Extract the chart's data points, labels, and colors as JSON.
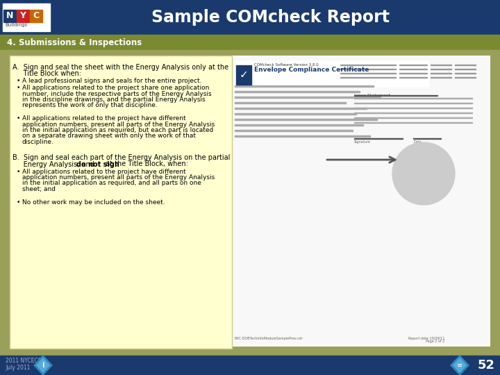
{
  "title": "Sample COMcheck Report",
  "section": "4. Submissions & Inspections",
  "header_bg": "#1a3a6e",
  "section_bg": "#7a8a30",
  "footer_bg": "#1a3a6e",
  "body_bg": "#9a9f5a",
  "page_number": "52",
  "footer_text_1": "2011 NYCECC",
  "footer_text_2": "July 2011",
  "nyc_n_color": "#1a3a6e",
  "nyc_y_color": "#cc2222",
  "nyc_c_color": "#cc6600",
  "diamond_color": "#3388bb",
  "yellow_box_color": "#ffffd0",
  "yellow_box_border": "#cccc88",
  "white_doc_color": "#f8f8f8",
  "section_A_line1": "A.  Sign and seal the sheet with the Energy Analysis only at the",
  "section_A_line2": "     Title Block when:",
  "bullet_A1": "A lead professional signs and seals for the entire project.",
  "bullet_A2_lines": [
    "All applications related to the project share one application",
    "number, include the respective parts of the Energy Analysis",
    "in the discipline drawings, and the partial Energy Analysis",
    "represents the work of only that discipline."
  ],
  "bullet_A3_lines": [
    "All applications related to the project have different",
    "application numbers, present all parts of the Energy Analysis",
    "in the initial application as required, but each part is located",
    "on a separate drawing sheet with only the work of that",
    "discipline."
  ],
  "section_B_line1": "B.  Sign and seal each part of the Energy Analysis on the partial",
  "section_B_line2_pre": "     Energy Analysis, and ",
  "section_B_line2_bold": "do not sign",
  "section_B_line2_post": " at the Title Block, when:",
  "bullet_B1_lines": [
    "All applications related to the project have different",
    "application numbers, present all parts of the Energy Analysis",
    "in the initial application as required, and all parts on one",
    "sheet; and"
  ],
  "bullet_B2": "No other work may be included on the sheet."
}
